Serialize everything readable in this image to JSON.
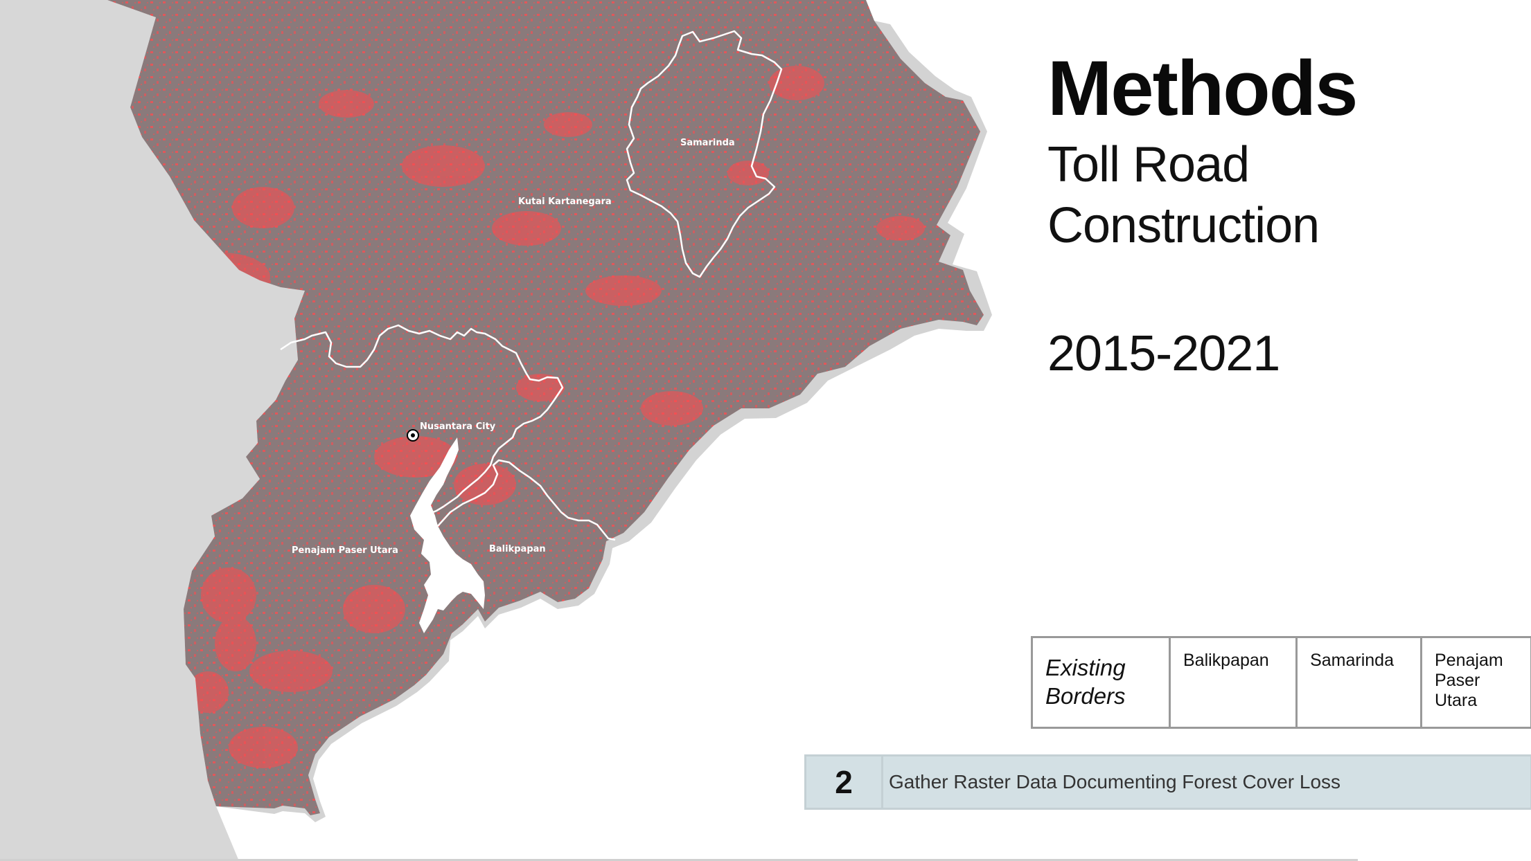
{
  "title": "Methods",
  "subtitle_lines": [
    "Toll Road",
    "Construction"
  ],
  "years": "2015-2021",
  "map_labels": {
    "samarinda": "Samarinda",
    "kutai_kartanegara": "Kutai Kartanegara",
    "nusantara_city": "Nusantara City",
    "penajam_paser_utara": "Penajam Paser Utara",
    "balikpapan": "Balikpapan"
  },
  "legend": {
    "lead": "Existing Borders",
    "items": [
      "Balikpapan",
      "Samarinda",
      "Penajam Paser Utara"
    ]
  },
  "step": {
    "number": "2",
    "text": "Gather Raster Data Documenting Forest Cover Loss"
  },
  "colors": {
    "land": "#8a7a7b",
    "forest_loss": "#ff4a4e",
    "neighbor_land": "#d7d7d7",
    "border": "#ffffff",
    "step_bar": "#d3e0e4"
  }
}
